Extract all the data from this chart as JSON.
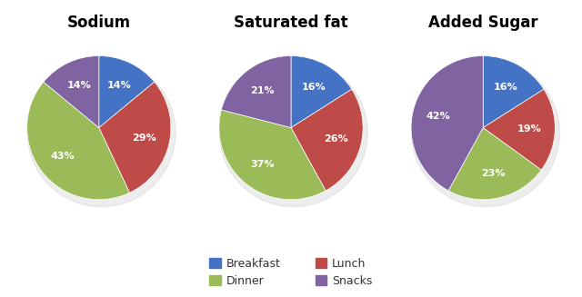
{
  "charts": [
    {
      "title": "Sodium",
      "values": [
        14,
        29,
        43,
        14
      ],
      "labels": [
        "14%",
        "29%",
        "43%",
        "14%"
      ],
      "order": [
        "Breakfast",
        "Lunch",
        "Dinner",
        "Snacks"
      ]
    },
    {
      "title": "Saturated fat",
      "values": [
        16,
        26,
        37,
        21
      ],
      "labels": [
        "16%",
        "26%",
        "37%",
        "21%"
      ],
      "order": [
        "Breakfast",
        "Lunch",
        "Dinner",
        "Snacks"
      ]
    },
    {
      "title": "Added Sugar",
      "values": [
        16,
        19,
        23,
        42
      ],
      "labels": [
        "16%",
        "19%",
        "23%",
        "42%"
      ],
      "order": [
        "Breakfast",
        "Lunch",
        "Dinner",
        "Snacks"
      ]
    }
  ],
  "colors": {
    "Breakfast": "#4472C4",
    "Lunch": "#BE4B48",
    "Dinner": "#9BBB59",
    "Snacks": "#8064A2"
  },
  "legend_order": [
    "Breakfast",
    "Dinner",
    "Lunch",
    "Snacks"
  ],
  "background_color": "#FFFFFF",
  "text_color": "#FFFFFF",
  "label_fontsize": 8,
  "title_fontsize": 12
}
